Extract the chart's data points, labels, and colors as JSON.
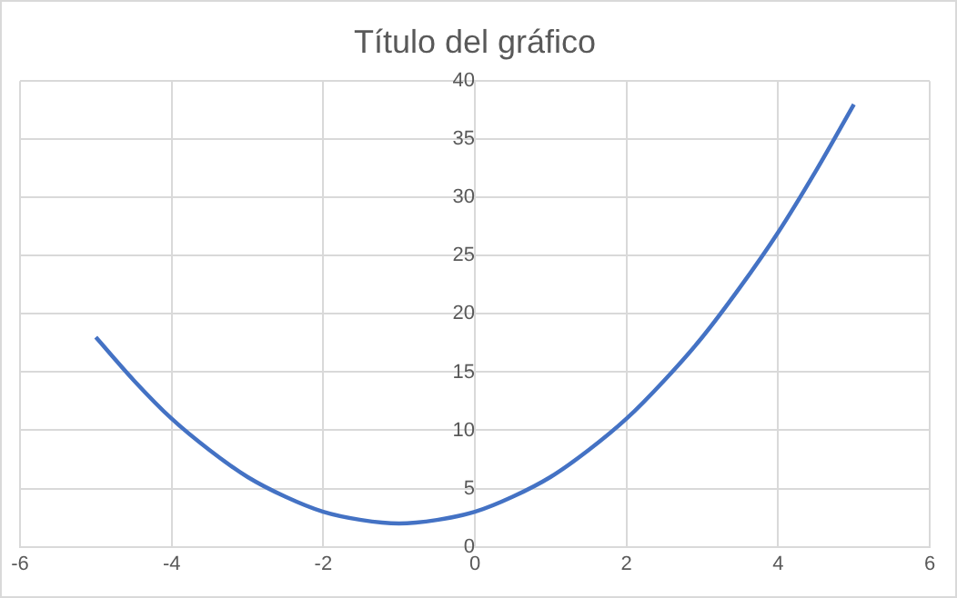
{
  "chart_data": {
    "type": "line",
    "title": "Título del gráfico",
    "x": [
      -5,
      -4.5,
      -4,
      -3.5,
      -3,
      -2.5,
      -2,
      -1.5,
      -1,
      -0.5,
      0,
      0.5,
      1,
      1.5,
      2,
      2.5,
      3,
      3.5,
      4,
      4.5,
      5
    ],
    "series": [
      {
        "color": "#4472c4",
        "values": [
          18,
          14.3,
          11,
          8.3,
          6,
          4.3,
          3,
          2.3,
          2,
          2.3,
          3,
          4.3,
          6,
          8.3,
          11,
          14.3,
          18,
          22.3,
          27,
          32.3,
          38
        ]
      }
    ],
    "xlim": [
      -6,
      6
    ],
    "ylim": [
      0,
      40
    ],
    "xticks": [
      -6,
      -4,
      -2,
      0,
      2,
      4,
      6
    ],
    "yticks": [
      0,
      5,
      10,
      15,
      20,
      25,
      30,
      35,
      40
    ],
    "grid": true,
    "legend": false,
    "marker": "none"
  }
}
